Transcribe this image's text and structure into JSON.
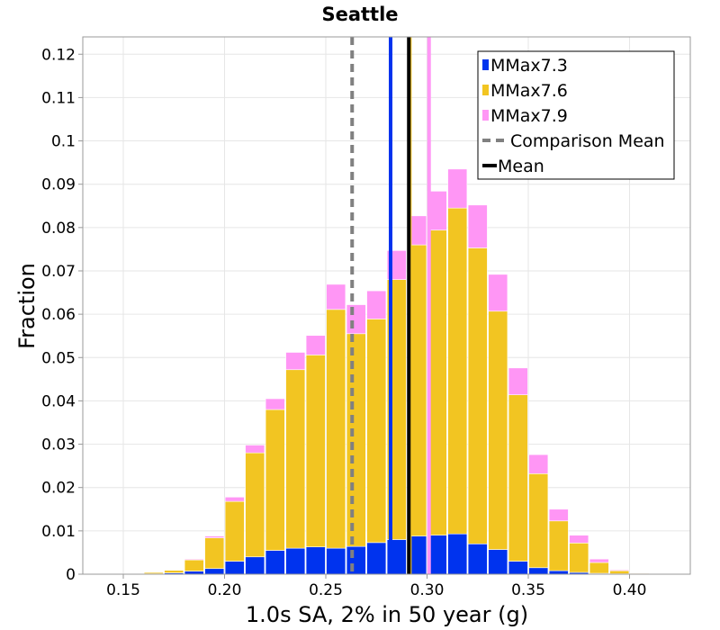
{
  "chart_data": {
    "type": "bar",
    "stacked": true,
    "title": "Seattle",
    "xlabel": "1.0s SA, 2% in 50 year (g)",
    "ylabel": "Fraction",
    "xlim": [
      0.13,
      0.43
    ],
    "ylim": [
      0,
      0.124
    ],
    "bin_width": 0.01,
    "x_ticks": [
      0.15,
      0.2,
      0.25,
      0.3,
      0.35,
      0.4
    ],
    "x_tick_labels": [
      "0.15",
      "0.20",
      "0.25",
      "0.30",
      "0.35",
      "0.40"
    ],
    "y_ticks": [
      0,
      0.01,
      0.02,
      0.03,
      0.04,
      0.05,
      0.06,
      0.07,
      0.08,
      0.09,
      0.1,
      0.11,
      0.12
    ],
    "y_tick_labels": [
      "0",
      "0.01",
      "0.02",
      "0.03",
      "0.04",
      "0.05",
      "0.06",
      "0.07",
      "0.08",
      "0.09",
      "0.1",
      "0.11",
      "0.12"
    ],
    "grid": true,
    "legend_position": "top-right",
    "bin_centers": [
      0.155,
      0.165,
      0.175,
      0.185,
      0.195,
      0.205,
      0.215,
      0.225,
      0.235,
      0.245,
      0.255,
      0.265,
      0.275,
      0.285,
      0.295,
      0.305,
      0.315,
      0.325,
      0.335,
      0.345,
      0.355,
      0.365,
      0.375,
      0.385,
      0.395,
      0.405,
      0.415
    ],
    "series": [
      {
        "name": "MMax7.3",
        "color": "#0033ee",
        "values": [
          0.0,
          0.0001,
          0.0003,
          0.0007,
          0.0013,
          0.003,
          0.004,
          0.0055,
          0.006,
          0.0063,
          0.006,
          0.0064,
          0.0073,
          0.008,
          0.0088,
          0.009,
          0.0093,
          0.007,
          0.0057,
          0.003,
          0.0015,
          0.0008,
          0.0004,
          0.0002,
          0.0001,
          0.0,
          0.0
        ]
      },
      {
        "name": "MMax7.6",
        "color": "#f2c522",
        "values": [
          0.0001,
          0.0003,
          0.0006,
          0.0026,
          0.0071,
          0.0138,
          0.024,
          0.0325,
          0.0412,
          0.0443,
          0.0551,
          0.0491,
          0.0516,
          0.06,
          0.0672,
          0.0704,
          0.0752,
          0.0683,
          0.055,
          0.0384,
          0.0217,
          0.0115,
          0.0068,
          0.0025,
          0.0007,
          0.0002,
          0.0001
        ]
      },
      {
        "name": "MMax7.9",
        "color": "#ff96f5",
        "values": [
          0.0,
          0.0,
          0.0001,
          0.0002,
          0.0004,
          0.001,
          0.0018,
          0.0025,
          0.004,
          0.0045,
          0.0058,
          0.0067,
          0.0065,
          0.0067,
          0.0067,
          0.009,
          0.009,
          0.0099,
          0.0085,
          0.0062,
          0.0044,
          0.0027,
          0.0018,
          0.0008,
          0.0002,
          0.0001,
          0.0
        ]
      }
    ],
    "lines": [
      {
        "name": "Comparison Mean",
        "x": 0.263,
        "color": "#808080",
        "style": "dashed"
      },
      {
        "name": "Mean",
        "x": 0.291,
        "color": "#000000",
        "style": "solid"
      }
    ],
    "series_mean_lines": [
      {
        "series": "MMax7.3",
        "x": 0.282,
        "color": "#0033ee"
      },
      {
        "series": "MMax7.6",
        "x": 0.2915,
        "color": "#f2c522"
      },
      {
        "series": "MMax7.9",
        "x": 0.301,
        "color": "#ff96f5"
      }
    ]
  }
}
